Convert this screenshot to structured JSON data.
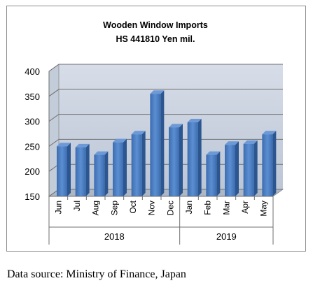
{
  "chart_data": {
    "type": "bar",
    "title": "Wooden Window Imports",
    "subtitle": "HS 441810 Yen mil.",
    "categories": [
      "Jun",
      "Jul",
      "Aug",
      "Sep",
      "Oct",
      "Nov",
      "Dec",
      "Jan",
      "Feb",
      "Mar",
      "Apr",
      "May"
    ],
    "groups": [
      {
        "label": "2018",
        "categories": [
          "Jun",
          "Jul",
          "Aug",
          "Sep",
          "Oct",
          "Nov",
          "Dec"
        ]
      },
      {
        "label": "2019",
        "categories": [
          "Jan",
          "Feb",
          "Mar",
          "Apr",
          "May"
        ]
      }
    ],
    "values": [
      250,
      248,
      233,
      258,
      274,
      355,
      288,
      298,
      233,
      253,
      255,
      274
    ],
    "yticks": [
      150,
      200,
      250,
      300,
      350,
      400
    ],
    "ylim": [
      150,
      400
    ],
    "grid": true,
    "legend": false,
    "bar_color": "#4a7fc1",
    "plot_wall_color": "#c9d2df"
  },
  "source_note": "Data source: Ministry of Finance, Japan"
}
